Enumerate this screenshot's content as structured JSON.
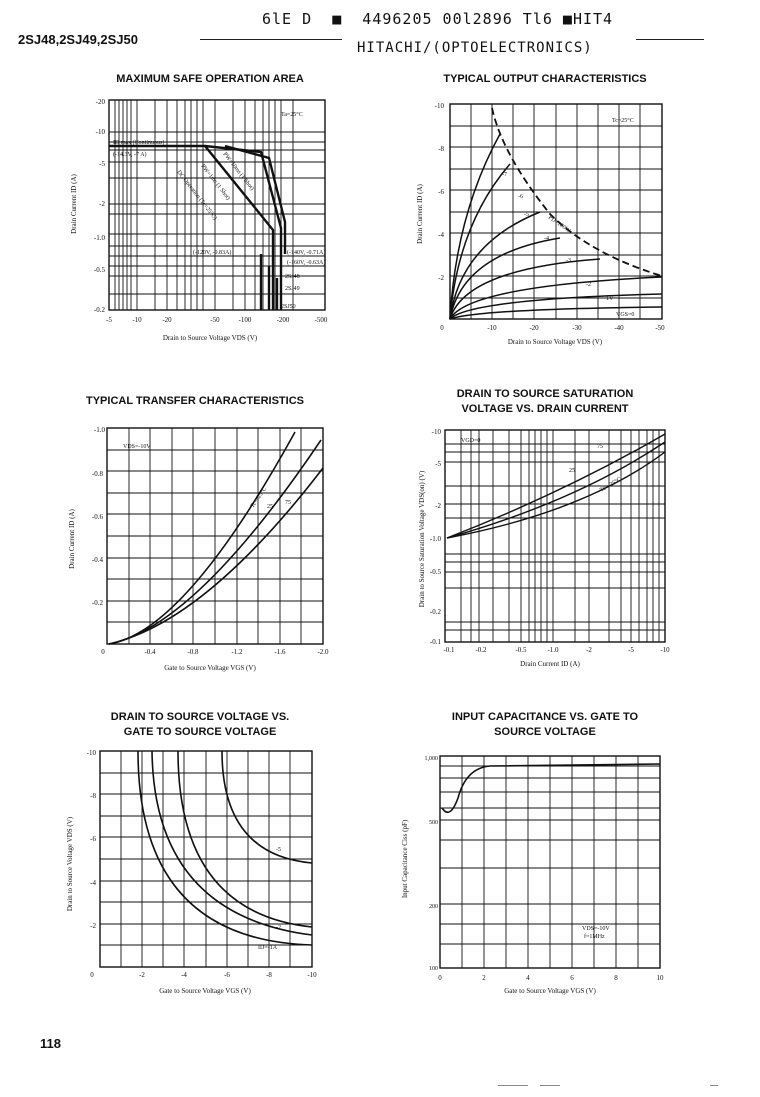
{
  "header": {
    "code_line": "6lE D  ■  4496205 00l2896 Tl6 ■HIT4",
    "part_numbers": "2SJ48,2SJ49,2SJ50",
    "manufacturer": "HITACHI/(OPTOELECTRONICS)"
  },
  "page_number": "118",
  "charts": {
    "soa": {
      "title": "MAXIMUM SAFE OPERATION AREA",
      "xlabel": "Drain to Source Voltage VDS (V)",
      "ylabel": "Drain Current ID (A)",
      "xticks": [
        "-5",
        "-10",
        "-20",
        "-50",
        "-100",
        "-200",
        "-500"
      ],
      "yticks": [
        "-20",
        "-10",
        "-5",
        "-2",
        "-1.0",
        "-0.5",
        "-0.2"
      ],
      "annotations": [
        "Ta=25°C",
        "ID max (Continuous)",
        "(-14.3V, -7 A)",
        "DC Operation (Tc=25°C)",
        "PW=1ms (1 Shot)",
        "PW=10ms (1 Shot)",
        "(-120V, -0.83A)",
        "(-140V, -0.71A)",
        "(-160V, -0.63A)",
        "2SJ48",
        "2SJ49",
        "2SJ50"
      ]
    },
    "output": {
      "title": "TYPICAL OUTPUT CHARACTERISTICS",
      "xlabel": "Drain to Source Voltage VDS (V)",
      "ylabel": "Drain Current ID (A)",
      "xticks": [
        "0",
        "-10",
        "-20",
        "-30",
        "-40",
        "-50"
      ],
      "yticks": [
        "-10",
        "-8",
        "-6",
        "-4",
        "-2"
      ],
      "annotations": [
        "Tc=25°C",
        "PD=100W",
        "-7",
        "-6",
        "-5",
        "-4",
        "-3",
        "-2",
        "-1V",
        "VGS=0"
      ]
    },
    "transfer": {
      "title": "TYPICAL TRANSFER CHARACTERISTICS",
      "xlabel": "Gate to Source Voltage VGS (V)",
      "ylabel": "Drain Current ID (A)",
      "xticks": [
        "0",
        "-0.4",
        "-0.8",
        "-1.2",
        "-1.6",
        "-2.0"
      ],
      "yticks": [
        "-1.0",
        "-0.8",
        "-0.6",
        "-0.4",
        "-0.2"
      ],
      "annotations": [
        "VDS=-10V",
        "Tc=-25°C",
        "25",
        "75"
      ]
    },
    "saturation": {
      "title_line1": "DRAIN TO SOURCE SATURATION",
      "title_line2": "VOLTAGE VS. DRAIN CURRENT",
      "xlabel": "Drain Current ID (A)",
      "ylabel": "Drain to Source Saturation Voltage VDS(on) (V)",
      "xticks": [
        "-0.1",
        "-0.2",
        "-0.5",
        "-1.0",
        "-2",
        "-5",
        "-10"
      ],
      "yticks": [
        "-10",
        "-5",
        "-2",
        "-1.0",
        "-0.5",
        "-0.2",
        "-0.1"
      ],
      "annotations": [
        "VGD=0",
        "75",
        "25",
        "Tc=-25°C"
      ]
    },
    "vds_vgs": {
      "title_line1": "DRAIN TO SOURCE VOLTAGE VS.",
      "title_line2": "GATE TO SOURCE VOLTAGE",
      "xlabel": "Gate to Source Voltage VGS (V)",
      "ylabel": "Drain to Source Voltage VDS (V)",
      "xticks": [
        "0",
        "-2",
        "-4",
        "-6",
        "-8",
        "-10"
      ],
      "yticks": [
        "-10",
        "-8",
        "-6",
        "-4",
        "-2"
      ],
      "annotations": [
        "-5",
        "-2",
        "ID=-1A"
      ]
    },
    "capacitance": {
      "title_line1": "INPUT CAPACITANCE VS. GATE TO",
      "title_line2": "SOURCE VOLTAGE",
      "xlabel": "Gate to Source Voltage VGS (V)",
      "ylabel": "Input Capacitance Ciss (pF)",
      "xticks": [
        "0",
        "2",
        "4",
        "6",
        "8",
        "10"
      ],
      "yticks": [
        "1,000",
        "500",
        "200",
        "100"
      ],
      "annotations": [
        "VDS=-10V",
        "f=1MHz"
      ]
    }
  }
}
